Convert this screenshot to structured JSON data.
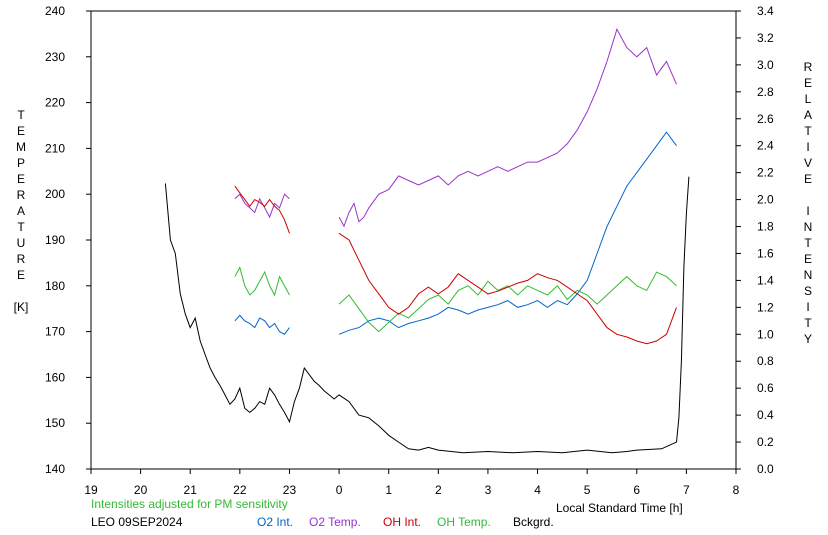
{
  "chart_data": {
    "type": "line",
    "title": "",
    "xlabel": "Local Standard Time [h]",
    "ylabel_left": [
      "T",
      "E",
      "M",
      "P",
      "E",
      "R",
      "A",
      "T",
      "U",
      "R",
      "E",
      "",
      "[K]"
    ],
    "ylabel_right": [
      "R",
      "E",
      "L",
      "A",
      "T",
      "I",
      "V",
      "E",
      "",
      "I",
      "N",
      "T",
      "E",
      "N",
      "S",
      "I",
      "T",
      "Y"
    ],
    "xlim": [
      19,
      32
    ],
    "ylim_left": [
      140,
      240
    ],
    "ylim_right": [
      0.0,
      3.4
    ],
    "x_ticks": [
      "19",
      "20",
      "21",
      "22",
      "23",
      "0",
      "1",
      "2",
      "3",
      "4",
      "5",
      "6",
      "7",
      "8"
    ],
    "y_ticks_left": [
      "140",
      "150",
      "160",
      "170",
      "180",
      "190",
      "200",
      "210",
      "220",
      "230",
      "240"
    ],
    "y_ticks_right": [
      "0.0",
      "0.2",
      "0.4",
      "0.6",
      "0.8",
      "1.0",
      "1.2",
      "1.4",
      "1.6",
      "1.8",
      "2.0",
      "2.2",
      "2.4",
      "2.6",
      "2.8",
      "3.0",
      "3.2",
      "3.4"
    ],
    "grid": false,
    "note": "Intensities adjusted for PM sensitivity",
    "station": "LEO 09SEP2024",
    "legend": [
      {
        "name": "O2 Int.",
        "color": "#0066cc"
      },
      {
        "name": "O2 Temp.",
        "color": "#9933cc"
      },
      {
        "name": "OH Int.",
        "color": "#cc0000"
      },
      {
        "name": "OH Temp.",
        "color": "#33bb33"
      },
      {
        "name": "Bckgrd.",
        "color": "#000000"
      }
    ],
    "series": [
      {
        "name": "Bckgrd.",
        "axis": "right",
        "color": "#000000",
        "x": [
          20.5,
          20.6,
          20.7,
          20.8,
          20.9,
          21.0,
          21.1,
          21.2,
          21.3,
          21.4,
          21.5,
          21.6,
          21.7,
          21.8,
          21.9,
          22.0,
          22.1,
          22.2,
          22.3,
          22.4,
          22.5,
          22.6,
          22.7,
          22.8,
          22.9,
          23.0,
          23.1,
          23.2,
          23.3,
          23.4,
          23.5,
          23.6,
          23.7,
          23.8,
          23.9,
          24.0,
          24.2,
          24.4,
          24.6,
          24.8,
          25.0,
          25.2,
          25.4,
          25.6,
          25.8,
          26.0,
          26.5,
          27.0,
          27.5,
          28.0,
          28.5,
          29.0,
          29.5,
          29.8,
          30.0,
          30.5,
          30.8,
          30.85,
          30.9,
          30.95,
          31.0,
          31.05
        ],
        "y": [
          2.12,
          1.7,
          1.6,
          1.3,
          1.15,
          1.05,
          1.12,
          0.95,
          0.85,
          0.75,
          0.68,
          0.62,
          0.55,
          0.48,
          0.52,
          0.6,
          0.45,
          0.42,
          0.45,
          0.5,
          0.48,
          0.6,
          0.55,
          0.48,
          0.42,
          0.35,
          0.5,
          0.6,
          0.75,
          0.7,
          0.65,
          0.62,
          0.58,
          0.55,
          0.52,
          0.55,
          0.5,
          0.4,
          0.38,
          0.32,
          0.25,
          0.2,
          0.15,
          0.14,
          0.16,
          0.14,
          0.12,
          0.13,
          0.12,
          0.13,
          0.12,
          0.14,
          0.12,
          0.13,
          0.14,
          0.15,
          0.2,
          0.38,
          0.8,
          1.5,
          1.9,
          2.17
        ]
      },
      {
        "name": "O2 Temp.",
        "axis": "left",
        "color": "#9933cc",
        "x": [
          21.9,
          22.0,
          22.1,
          22.2,
          22.3,
          22.4,
          22.5,
          22.6,
          22.7,
          22.8,
          22.9,
          23.0,
          24.0,
          24.1,
          24.2,
          24.3,
          24.4,
          24.5,
          24.6,
          24.8,
          25.0,
          25.2,
          25.4,
          25.6,
          25.8,
          26.0,
          26.2,
          26.4,
          26.6,
          26.8,
          27.0,
          27.2,
          27.4,
          27.6,
          27.8,
          28.0,
          28.2,
          28.4,
          28.6,
          28.8,
          29.0,
          29.2,
          29.4,
          29.6,
          29.8,
          30.0,
          30.2,
          30.4,
          30.6,
          30.8
        ],
        "y": [
          199,
          200,
          198,
          197,
          196,
          199,
          197,
          195,
          198,
          197,
          200,
          199,
          195,
          193,
          196,
          198,
          194,
          195,
          197,
          200,
          201,
          204,
          203,
          202,
          203,
          204,
          202,
          204,
          205,
          204,
          205,
          206,
          205,
          206,
          207,
          207,
          208,
          209,
          211,
          214,
          218,
          223,
          229,
          236,
          232,
          230,
          232,
          226,
          229,
          224
        ]
      },
      {
        "name": "O2 Int.",
        "axis": "right",
        "color": "#0066cc",
        "x": [
          21.9,
          22.0,
          22.1,
          22.2,
          22.3,
          22.4,
          22.5,
          22.6,
          22.7,
          22.8,
          22.9,
          23.0,
          24.0,
          24.2,
          24.4,
          24.6,
          24.8,
          25.0,
          25.2,
          25.4,
          25.6,
          25.8,
          26.0,
          26.2,
          26.4,
          26.6,
          26.8,
          27.0,
          27.2,
          27.4,
          27.6,
          27.8,
          28.0,
          28.2,
          28.4,
          28.6,
          28.8,
          29.0,
          29.2,
          29.4,
          29.6,
          29.8,
          30.0,
          30.2,
          30.4,
          30.6,
          30.8
        ],
        "y": [
          1.1,
          1.14,
          1.1,
          1.08,
          1.05,
          1.12,
          1.1,
          1.05,
          1.08,
          1.02,
          1.0,
          1.05,
          1.0,
          1.03,
          1.05,
          1.1,
          1.12,
          1.1,
          1.05,
          1.08,
          1.1,
          1.12,
          1.15,
          1.2,
          1.18,
          1.15,
          1.18,
          1.2,
          1.22,
          1.25,
          1.2,
          1.22,
          1.25,
          1.2,
          1.25,
          1.22,
          1.3,
          1.4,
          1.6,
          1.8,
          1.95,
          2.1,
          2.2,
          2.3,
          2.4,
          2.5,
          2.4
        ]
      },
      {
        "name": "OH Temp.",
        "axis": "left",
        "color": "#33bb33",
        "x": [
          21.9,
          22.0,
          22.1,
          22.2,
          22.3,
          22.4,
          22.5,
          22.6,
          22.7,
          22.8,
          22.9,
          23.0,
          24.0,
          24.2,
          24.4,
          24.6,
          24.8,
          25.0,
          25.2,
          25.4,
          25.6,
          25.8,
          26.0,
          26.2,
          26.4,
          26.6,
          26.8,
          27.0,
          27.2,
          27.4,
          27.6,
          27.8,
          28.0,
          28.2,
          28.4,
          28.6,
          28.8,
          29.0,
          29.2,
          29.4,
          29.6,
          29.8,
          30.0,
          30.2,
          30.4,
          30.6,
          30.8
        ],
        "y": [
          182,
          184,
          180,
          178,
          179,
          181,
          183,
          180,
          178,
          182,
          180,
          178,
          176,
          178,
          175,
          172,
          170,
          172,
          174,
          173,
          175,
          177,
          178,
          176,
          179,
          180,
          178,
          181,
          179,
          180,
          178,
          180,
          179,
          178,
          180,
          177,
          179,
          178,
          176,
          178,
          180,
          182,
          180,
          179,
          183,
          182,
          180
        ]
      },
      {
        "name": "OH Int.",
        "axis": "right",
        "color": "#cc0000",
        "x": [
          21.9,
          22.0,
          22.1,
          22.2,
          22.3,
          22.4,
          22.5,
          22.6,
          22.7,
          22.8,
          22.9,
          23.0,
          24.0,
          24.2,
          24.4,
          24.6,
          24.8,
          25.0,
          25.2,
          25.4,
          25.6,
          25.8,
          26.0,
          26.2,
          26.4,
          26.6,
          26.8,
          27.0,
          27.2,
          27.4,
          27.6,
          27.8,
          28.0,
          28.2,
          28.4,
          28.6,
          28.8,
          29.0,
          29.2,
          29.4,
          29.6,
          29.8,
          30.0,
          30.2,
          30.4,
          30.6,
          30.8
        ],
        "y": [
          2.1,
          2.05,
          2.0,
          1.95,
          2.0,
          1.98,
          1.95,
          2.0,
          1.95,
          1.92,
          1.85,
          1.75,
          1.75,
          1.7,
          1.55,
          1.4,
          1.3,
          1.2,
          1.15,
          1.2,
          1.3,
          1.35,
          1.3,
          1.35,
          1.45,
          1.4,
          1.35,
          1.3,
          1.32,
          1.35,
          1.38,
          1.4,
          1.45,
          1.42,
          1.4,
          1.35,
          1.3,
          1.25,
          1.15,
          1.05,
          1.0,
          0.98,
          0.95,
          0.93,
          0.95,
          1.0,
          1.2
        ]
      }
    ]
  }
}
